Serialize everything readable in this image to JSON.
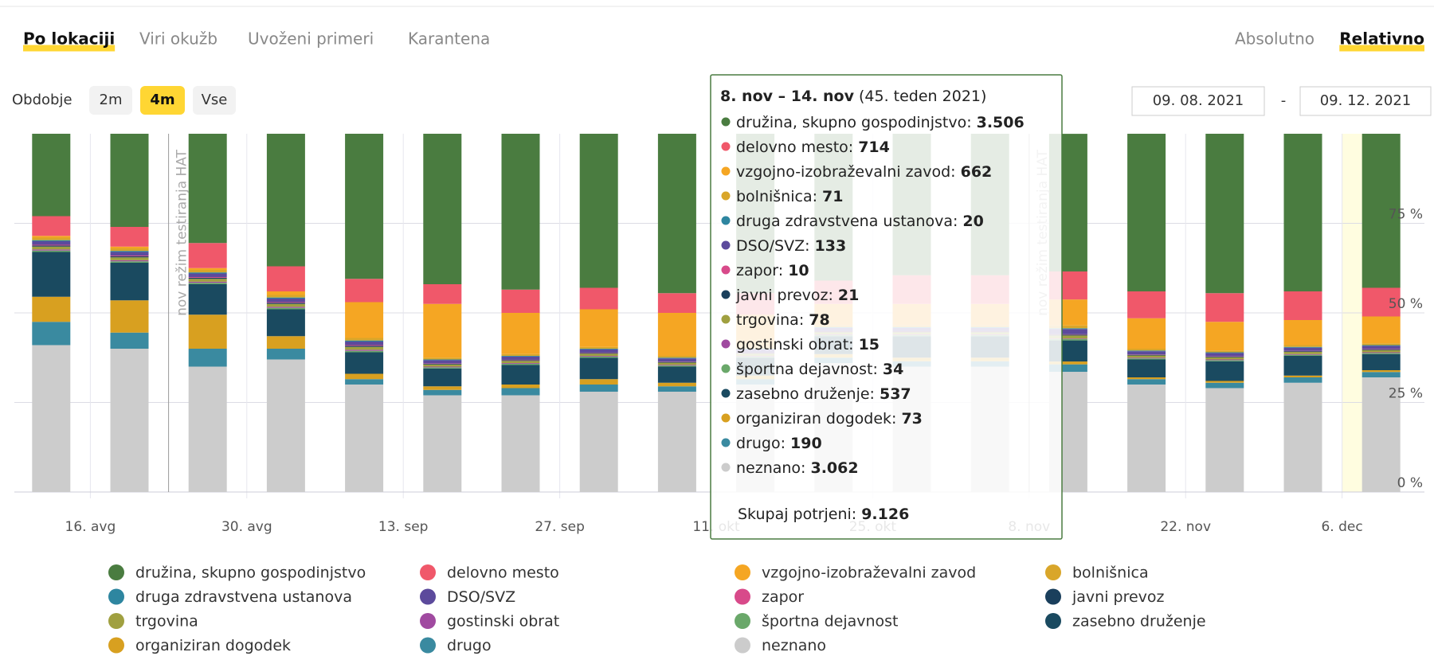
{
  "nav": {
    "tabs": [
      "Po lokaciji",
      "Viri okužb",
      "Uvoženi primeri",
      "Karantena"
    ],
    "modes": [
      "Absolutno",
      "Relativno"
    ]
  },
  "period": {
    "label": "Obdobje",
    "options": [
      "2m",
      "4m",
      "Vse"
    ],
    "from": "09. 08. 2021",
    "separator": "-",
    "to": "09. 12. 2021"
  },
  "chart_data": {
    "type": "stacked_bar",
    "categories": [
      null,
      null,
      null,
      null,
      null,
      null,
      null,
      null,
      null,
      null,
      null,
      null,
      null,
      null,
      null,
      null,
      null,
      null
    ],
    "xticks": [
      {
        "value": 0.5,
        "label": "16. avg"
      },
      {
        "value": 2.5,
        "label": "30. avg"
      },
      {
        "value": 4.5,
        "label": "13. sep"
      },
      {
        "value": 6.5,
        "label": "27. sep"
      },
      {
        "value": 8.5,
        "label": "11. okt"
      },
      {
        "value": 10.5,
        "label": "25. okt"
      },
      {
        "value": 12.5,
        "label": "8. nov"
      },
      {
        "value": 14.5,
        "label": "22. nov"
      },
      {
        "value": 16.5,
        "label": "6. dec"
      }
    ],
    "ylim": [
      0,
      100
    ],
    "yticks": [
      {
        "value": 0,
        "label": "0 %"
      },
      {
        "value": 25,
        "label": "25 %"
      },
      {
        "value": 50,
        "label": "50 %"
      },
      {
        "value": 75,
        "label": "75 %"
      }
    ],
    "grid": true,
    "annotations": [
      {
        "text": "nov režim testiranja HAT",
        "x": 1.5
      },
      {
        "text": "nov režim testiranja HAT",
        "x": 12.5
      }
    ],
    "series": [
      {
        "name": "družina, skupno gospodinjstvo",
        "color": "#4a7c40",
        "values": [
          23,
          26,
          30.5,
          37,
          40.5,
          42,
          43.5,
          43,
          44.5,
          44.5,
          41,
          39.5,
          39.5,
          38.42,
          44,
          44.5,
          44,
          43
        ]
      },
      {
        "name": "delovno mesto",
        "color": "#f0586a",
        "values": [
          5.5,
          5.5,
          7,
          7,
          6.5,
          5.5,
          6.5,
          6,
          5.5,
          6,
          6.5,
          8,
          8,
          7.82,
          7.5,
          8,
          8,
          8
        ]
      },
      {
        "name": "vzgojno-izobraževalni zavod",
        "color": "#f5a623",
        "values": [
          0.5,
          0.5,
          0.5,
          1,
          10,
          15,
          11.5,
          10.5,
          12,
          9,
          6,
          6,
          6,
          7.25,
          8.5,
          8,
          7,
          7.5
        ]
      },
      {
        "name": "bolnišnica",
        "color": "#d9a62a",
        "values": [
          0.7,
          0.7,
          0.7,
          0.7,
          0.7,
          0.5,
          0.5,
          0.5,
          0.5,
          0.5,
          0.5,
          0.5,
          0.5,
          0.78,
          0.5,
          0.5,
          0.5,
          0.5
        ]
      },
      {
        "name": "druga zdravstvena ustanova",
        "color": "#2e86a0",
        "values": [
          0.3,
          0.3,
          0.3,
          0.3,
          0.3,
          0.2,
          0.2,
          0.2,
          0.2,
          0.2,
          0.2,
          0.2,
          0.2,
          0.22,
          0.2,
          0.2,
          0.2,
          0.2
        ]
      },
      {
        "name": "DSO/SVZ",
        "color": "#5c4a9c",
        "values": [
          1,
          1,
          1,
          1,
          1,
          0.9,
          0.9,
          0.9,
          0.9,
          0.9,
          0.9,
          0.9,
          0.9,
          1.46,
          0.9,
          0.9,
          0.9,
          0.9
        ]
      },
      {
        "name": "zapor",
        "color": "#d84a8a",
        "values": [
          0.2,
          0.2,
          0.2,
          0.2,
          0.2,
          0.1,
          0.1,
          0.1,
          0.1,
          0.1,
          0.1,
          0.1,
          0.1,
          0.11,
          0.1,
          0.1,
          0.1,
          0.1
        ]
      },
      {
        "name": "javni prevoz",
        "color": "#1a3f5c",
        "values": [
          0.3,
          0.3,
          0.3,
          0.3,
          0.3,
          0.2,
          0.2,
          0.2,
          0.2,
          0.2,
          0.2,
          0.2,
          0.2,
          0.23,
          0.2,
          0.2,
          0.2,
          0.2
        ]
      },
      {
        "name": "trgovina",
        "color": "#a0a040",
        "values": [
          0.8,
          0.8,
          0.8,
          0.8,
          0.8,
          0.6,
          0.6,
          0.6,
          0.6,
          0.6,
          0.6,
          0.6,
          0.6,
          0.85,
          0.6,
          0.6,
          0.6,
          0.6
        ]
      },
      {
        "name": "gostinski obrat",
        "color": "#a04aa0",
        "values": [
          0.3,
          0.3,
          0.3,
          0.3,
          0.3,
          0.2,
          0.2,
          0.2,
          0.2,
          0.2,
          0.2,
          0.2,
          0.2,
          0.16,
          0.2,
          0.2,
          0.2,
          0.2
        ]
      },
      {
        "name": "športna dejavnost",
        "color": "#6aa86a",
        "values": [
          0.4,
          0.4,
          0.4,
          0.4,
          0.4,
          0.3,
          0.3,
          0.3,
          0.3,
          0.3,
          0.3,
          0.3,
          0.3,
          0.37,
          0.3,
          0.3,
          0.3,
          0.3
        ]
      },
      {
        "name": "zasebno druženje",
        "color": "#1a4a60",
        "values": [
          12.5,
          10.5,
          8.5,
          7.5,
          6,
          5,
          5.5,
          6,
          4.5,
          5,
          5,
          6,
          6,
          5.88,
          5,
          5.5,
          5.5,
          4.5
        ]
      },
      {
        "name": "organiziran dogodek",
        "color": "#d8a020",
        "values": [
          7,
          9,
          9.5,
          3.5,
          1.5,
          1,
          1,
          1.5,
          1,
          1,
          1,
          1,
          1,
          0.8,
          0.5,
          0.5,
          0.5,
          0.5
        ]
      },
      {
        "name": "drugo",
        "color": "#3a8aa0",
        "values": [
          6.5,
          4.5,
          5,
          3,
          1.5,
          1.5,
          2,
          2,
          1.5,
          1.5,
          1.5,
          1.5,
          1.5,
          2.08,
          1.5,
          1.5,
          1.5,
          1.5
        ]
      },
      {
        "name": "neznano",
        "color": "#cccccc",
        "values": [
          41,
          40,
          35,
          37,
          30,
          27,
          27,
          28,
          28,
          30,
          36,
          35,
          35,
          33.55,
          30,
          29,
          30.5,
          32
        ]
      }
    ]
  },
  "tooltip": {
    "title": "8. nov – 14. nov",
    "subtitle": "(45. teden 2021)",
    "rows": [
      {
        "label": "družina, skupno gospodinjstvo:",
        "value": "3.506"
      },
      {
        "label": "delovno mesto:",
        "value": "714"
      },
      {
        "label": "vzgojno-izobraževalni zavod:",
        "value": "662"
      },
      {
        "label": "bolnišnica:",
        "value": "71"
      },
      {
        "label": "druga zdravstvena ustanova:",
        "value": "20"
      },
      {
        "label": "DSO/SVZ:",
        "value": "133"
      },
      {
        "label": "zapor:",
        "value": "10"
      },
      {
        "label": "javni prevoz:",
        "value": "21"
      },
      {
        "label": "trgovina:",
        "value": "78"
      },
      {
        "label": "gostinski obrat:",
        "value": "15"
      },
      {
        "label": "športna dejavnost:",
        "value": "34"
      },
      {
        "label": "zasebno druženje:",
        "value": "537"
      },
      {
        "label": "organiziran dogodek:",
        "value": "73"
      },
      {
        "label": "drugo:",
        "value": "190"
      },
      {
        "label": "neznano:",
        "value": "3.062"
      }
    ],
    "total_label": "Skupaj potrjeni:",
    "total": "9.126"
  }
}
